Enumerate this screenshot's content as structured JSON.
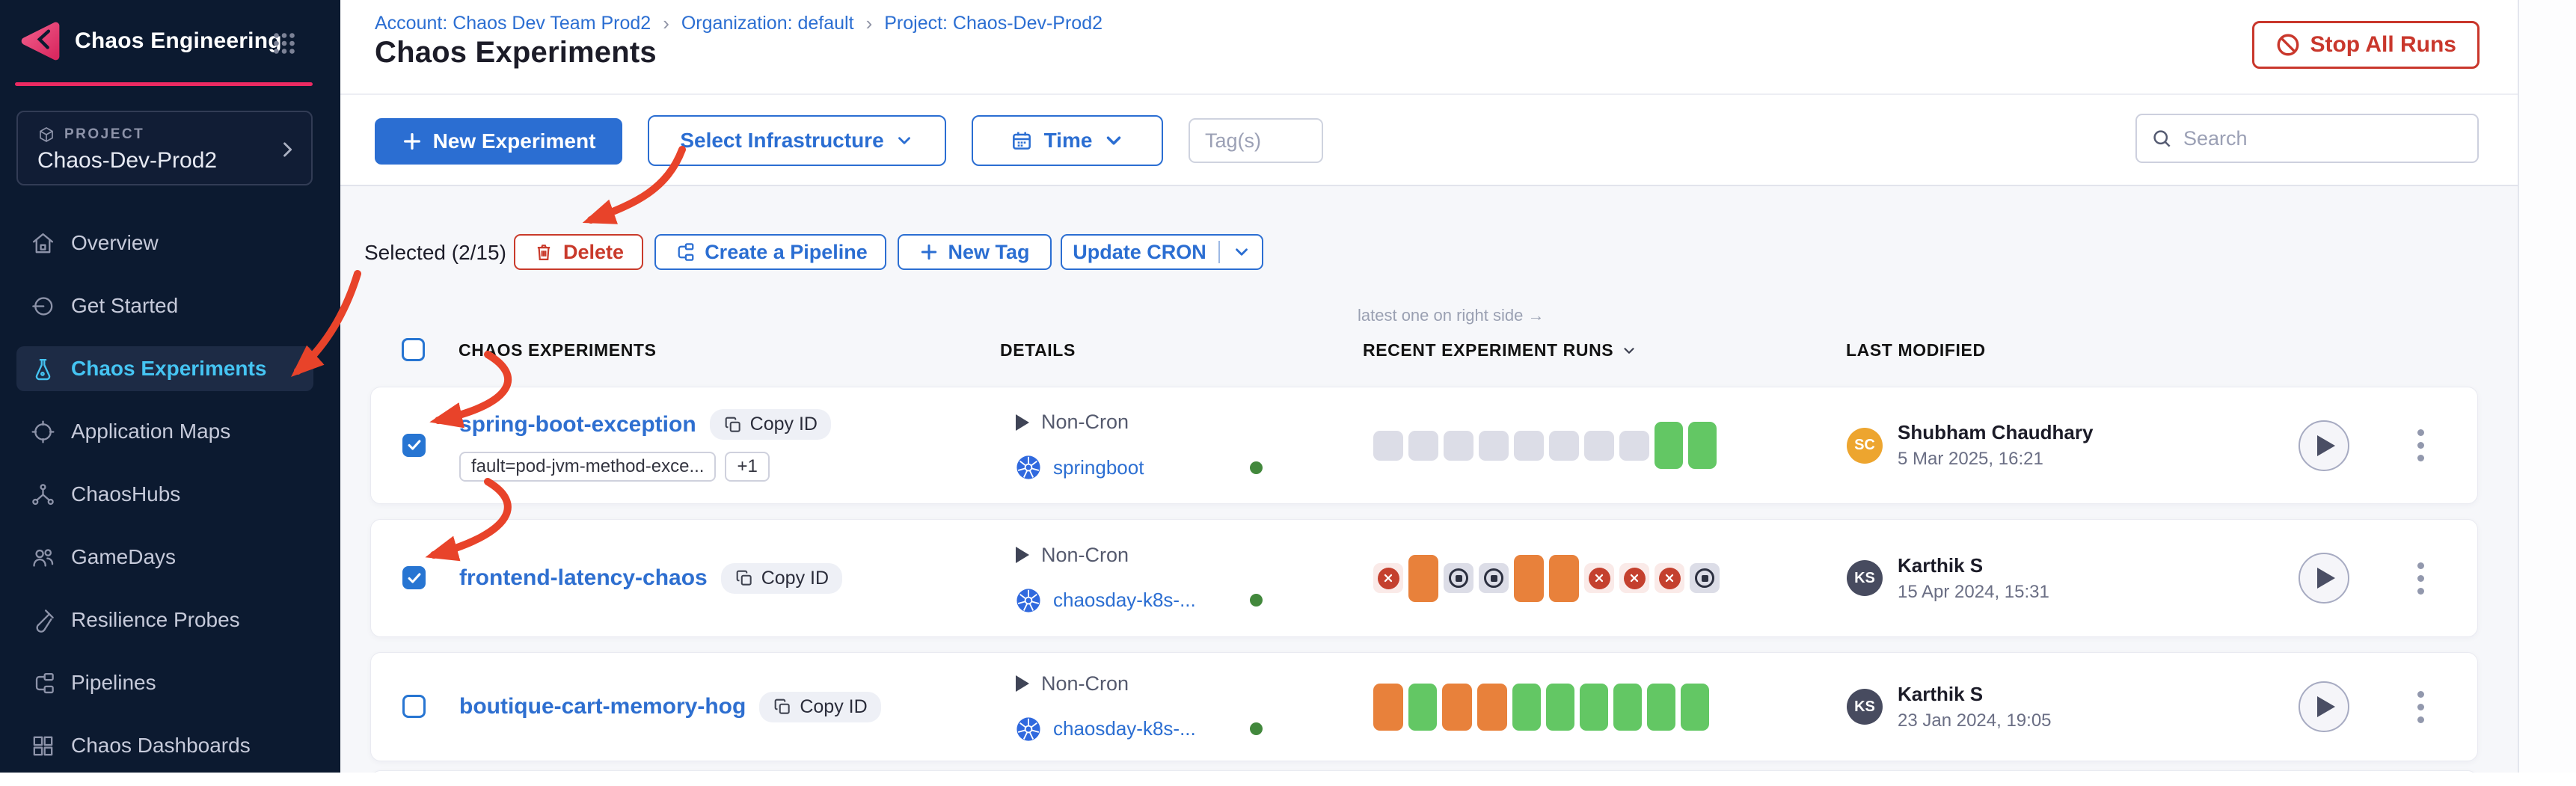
{
  "colors": {
    "accent_blue": "#2b6ed2",
    "accent_pink": "#ec2a62",
    "danger_red": "#c9372c",
    "active_cyan": "#45c4f2",
    "run_green": "#63c764",
    "run_orange": "#e8813b",
    "run_gray": "#dcdde7",
    "run_failed_red": "#c4402e",
    "infra_green_dot": "#42883c"
  },
  "app": {
    "title": "Chaos Engineering",
    "project_label": "PROJECT",
    "project_name": "Chaos-Dev-Prod2"
  },
  "sidebar": {
    "items": [
      {
        "label": "Overview",
        "icon": "home-icon",
        "active": false
      },
      {
        "label": "Get Started",
        "icon": "get-started-icon",
        "active": false
      },
      {
        "label": "Chaos Experiments",
        "icon": "flask-icon",
        "active": true
      },
      {
        "label": "Application Maps",
        "icon": "target-icon",
        "active": false
      },
      {
        "label": "ChaosHubs",
        "icon": "hub-icon",
        "active": false
      },
      {
        "label": "GameDays",
        "icon": "people-icon",
        "active": false
      },
      {
        "label": "Resilience Probes",
        "icon": "probe-icon",
        "active": false
      },
      {
        "label": "Pipelines",
        "icon": "pipeline-icon",
        "active": false
      },
      {
        "label": "Chaos Dashboards",
        "icon": "dashboard-icon",
        "active": false
      }
    ]
  },
  "breadcrumb": {
    "account": "Account: Chaos Dev Team Prod2",
    "separator": "›",
    "org": "Organization: default",
    "project": "Project: Chaos-Dev-Prod2"
  },
  "page": {
    "title": "Chaos Experiments"
  },
  "actions": {
    "stop_all_runs": "Stop All Runs",
    "new_experiment": "New Experiment",
    "select_infrastructure": "Select Infrastructure",
    "time": "Time",
    "tags_placeholder": "Tag(s)",
    "search_placeholder": "Search"
  },
  "selection_bar": {
    "selected": "Selected (2/15)",
    "delete": "Delete",
    "create_pipeline": "Create a Pipeline",
    "new_tag": "New Tag",
    "update_cron": "Update CRON"
  },
  "table": {
    "note": "latest one on right side →",
    "headers": {
      "experiments": "CHAOS EXPERIMENTS",
      "details": "DETAILS",
      "runs": "RECENT EXPERIMENT RUNS",
      "modified": "LAST MODIFIED"
    },
    "copy_id_label": "Copy ID",
    "rows": [
      {
        "name": "spring-boot-exception",
        "checked": true,
        "tags": [
          "fault=pod-jvm-method-exce...",
          "+1"
        ],
        "schedule": "Non-Cron",
        "infra": "springboot",
        "infra_status": "healthy",
        "runs": [
          "empty",
          "empty",
          "empty",
          "empty",
          "empty",
          "empty",
          "empty",
          "empty",
          "passed",
          "passed"
        ],
        "modified": {
          "initials": "SC",
          "avatar_color": "#eda52f",
          "name": "Shubham Chaudhary",
          "date": "5 Mar 2025, 16:21"
        }
      },
      {
        "name": "frontend-latency-chaos",
        "checked": true,
        "tags": [],
        "schedule": "Non-Cron",
        "infra": "chaosday-k8s-...",
        "infra_status": "healthy",
        "runs": [
          "failed",
          "running",
          "stopped",
          "stopped",
          "running",
          "running",
          "failed",
          "failed",
          "failed",
          "stopped"
        ],
        "modified": {
          "initials": "KS",
          "avatar_color": "#474b5f",
          "name": "Karthik S",
          "date": "15 Apr 2024, 15:31"
        }
      },
      {
        "name": "boutique-cart-memory-hog",
        "checked": false,
        "tags": [],
        "schedule": "Non-Cron",
        "infra": "chaosday-k8s-...",
        "infra_status": "healthy",
        "runs": [
          "running",
          "passed",
          "running",
          "running",
          "passed",
          "passed",
          "passed",
          "passed",
          "passed",
          "passed"
        ],
        "modified": {
          "initials": "KS",
          "avatar_color": "#474b5f",
          "name": "Karthik S",
          "date": "23 Jan 2024, 19:05"
        }
      }
    ]
  }
}
